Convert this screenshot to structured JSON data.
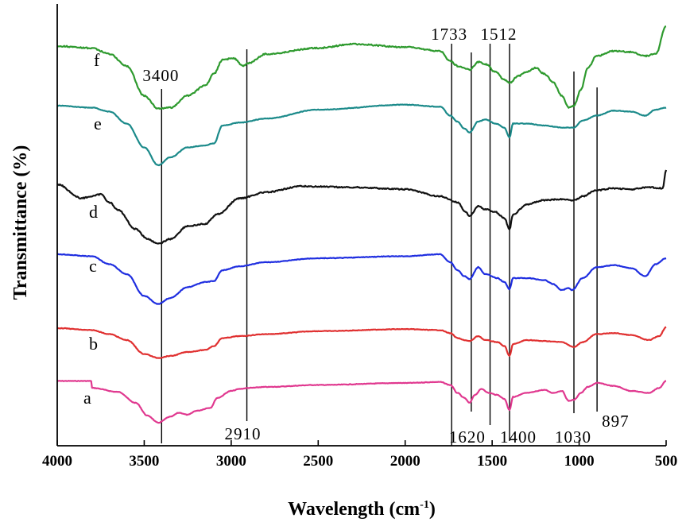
{
  "chart_data": {
    "type": "line",
    "title": "",
    "xlabel": "Wavelength (cm",
    "xlabel_sup": "-1",
    "xlabel_close": ")",
    "ylabel": "Transmittance (%)",
    "xlim": [
      4000,
      500
    ],
    "xticks": [
      {
        "value": 4000,
        "label": "4000"
      },
      {
        "value": 3500,
        "label": "3500"
      },
      {
        "value": 3000,
        "label": "3000"
      },
      {
        "value": 2500,
        "label": "2500"
      },
      {
        "value": 2000,
        "label": "2000"
      },
      {
        "value": 1500,
        "label": "1500"
      },
      {
        "value": 1000,
        "label": "1000"
      },
      {
        "value": 500,
        "label": "500"
      }
    ],
    "series": [
      {
        "name": "a",
        "label": "a",
        "color": "#e0388f",
        "offset": 0,
        "points": [
          [
            3800,
            5
          ],
          [
            3650,
            9
          ],
          [
            3550,
            20
          ],
          [
            3480,
            33
          ],
          [
            3420,
            40
          ],
          [
            3350,
            34
          ],
          [
            3300,
            30
          ],
          [
            3250,
            32
          ],
          [
            3200,
            28
          ],
          [
            3120,
            25
          ],
          [
            3080,
            15
          ],
          [
            3000,
            8
          ],
          [
            2950,
            6
          ],
          [
            2900,
            5
          ],
          [
            2800,
            4
          ],
          [
            2500,
            2
          ],
          [
            2000,
            0
          ],
          [
            1800,
            -1
          ],
          [
            1740,
            2
          ],
          [
            1700,
            10
          ],
          [
            1660,
            15
          ],
          [
            1630,
            20
          ],
          [
            1600,
            12
          ],
          [
            1560,
            6
          ],
          [
            1520,
            10
          ],
          [
            1470,
            12
          ],
          [
            1430,
            16
          ],
          [
            1400,
            27
          ],
          [
            1380,
            14
          ],
          [
            1300,
            10
          ],
          [
            1200,
            7
          ],
          [
            1150,
            10
          ],
          [
            1100,
            8
          ],
          [
            1060,
            18
          ],
          [
            1030,
            17
          ],
          [
            990,
            10
          ],
          [
            950,
            4
          ],
          [
            897,
            0
          ],
          [
            800,
            3
          ],
          [
            700,
            8
          ],
          [
            600,
            10
          ],
          [
            540,
            5
          ],
          [
            500,
            -2
          ]
        ]
      },
      {
        "name": "b",
        "label": "b",
        "color": "#e03030",
        "offset": 0,
        "points": [
          [
            4000,
            0
          ],
          [
            3800,
            2
          ],
          [
            3700,
            6
          ],
          [
            3600,
            12
          ],
          [
            3500,
            26
          ],
          [
            3420,
            30
          ],
          [
            3350,
            28
          ],
          [
            3250,
            24
          ],
          [
            3150,
            22
          ],
          [
            3100,
            18
          ],
          [
            3050,
            10
          ],
          [
            2950,
            8
          ],
          [
            2800,
            6
          ],
          [
            2500,
            3
          ],
          [
            2000,
            1
          ],
          [
            1800,
            2
          ],
          [
            1740,
            5
          ],
          [
            1700,
            10
          ],
          [
            1660,
            12
          ],
          [
            1630,
            13
          ],
          [
            1580,
            8
          ],
          [
            1540,
            12
          ],
          [
            1470,
            14
          ],
          [
            1430,
            18
          ],
          [
            1400,
            28
          ],
          [
            1380,
            16
          ],
          [
            1300,
            12
          ],
          [
            1200,
            13
          ],
          [
            1100,
            14
          ],
          [
            1030,
            19
          ],
          [
            980,
            14
          ],
          [
            900,
            6
          ],
          [
            800,
            5
          ],
          [
            700,
            7
          ],
          [
            600,
            12
          ],
          [
            540,
            8
          ],
          [
            500,
            -1
          ]
        ]
      },
      {
        "name": "c",
        "label": "c",
        "color": "#1f2ee0",
        "offset": 0,
        "points": [
          [
            4000,
            0
          ],
          [
            3800,
            2
          ],
          [
            3700,
            10
          ],
          [
            3600,
            20
          ],
          [
            3500,
            42
          ],
          [
            3420,
            50
          ],
          [
            3350,
            44
          ],
          [
            3250,
            33
          ],
          [
            3150,
            28
          ],
          [
            3100,
            27
          ],
          [
            3050,
            16
          ],
          [
            2950,
            12
          ],
          [
            2800,
            8
          ],
          [
            2500,
            4
          ],
          [
            2000,
            2
          ],
          [
            1800,
            0
          ],
          [
            1740,
            8
          ],
          [
            1700,
            16
          ],
          [
            1660,
            22
          ],
          [
            1630,
            25
          ],
          [
            1580,
            13
          ],
          [
            1540,
            20
          ],
          [
            1470,
            24
          ],
          [
            1430,
            28
          ],
          [
            1400,
            35
          ],
          [
            1380,
            24
          ],
          [
            1300,
            24
          ],
          [
            1200,
            26
          ],
          [
            1150,
            30
          ],
          [
            1100,
            36
          ],
          [
            1060,
            34
          ],
          [
            1040,
            36
          ],
          [
            980,
            24
          ],
          [
            900,
            13
          ],
          [
            800,
            11
          ],
          [
            700,
            14
          ],
          [
            620,
            22
          ],
          [
            560,
            10
          ],
          [
            500,
            4
          ]
        ]
      },
      {
        "name": "d",
        "label": "d",
        "color": "#111111",
        "offset": 0,
        "points": [
          [
            4000,
            0
          ],
          [
            3860,
            14
          ],
          [
            3800,
            12
          ],
          [
            3750,
            10
          ],
          [
            3700,
            18
          ],
          [
            3650,
            26
          ],
          [
            3550,
            45
          ],
          [
            3480,
            55
          ],
          [
            3420,
            60
          ],
          [
            3350,
            55
          ],
          [
            3250,
            42
          ],
          [
            3150,
            40
          ],
          [
            3080,
            30
          ],
          [
            2950,
            14
          ],
          [
            2800,
            8
          ],
          [
            2600,
            2
          ],
          [
            2300,
            3
          ],
          [
            2000,
            5
          ],
          [
            1800,
            12
          ],
          [
            1700,
            18
          ],
          [
            1650,
            28
          ],
          [
            1630,
            32
          ],
          [
            1580,
            22
          ],
          [
            1540,
            25
          ],
          [
            1480,
            28
          ],
          [
            1430,
            34
          ],
          [
            1400,
            45
          ],
          [
            1380,
            30
          ],
          [
            1300,
            20
          ],
          [
            1200,
            16
          ],
          [
            1100,
            15
          ],
          [
            1030,
            16
          ],
          [
            980,
            12
          ],
          [
            900,
            6
          ],
          [
            800,
            4
          ],
          [
            700,
            5
          ],
          [
            600,
            3
          ],
          [
            520,
            4
          ],
          [
            500,
            -14
          ]
        ]
      },
      {
        "name": "e",
        "label": "e",
        "color": "#1b8a8a",
        "offset": 0,
        "points": [
          [
            4000,
            0
          ],
          [
            3800,
            2
          ],
          [
            3700,
            6
          ],
          [
            3600,
            18
          ],
          [
            3500,
            42
          ],
          [
            3420,
            60
          ],
          [
            3350,
            52
          ],
          [
            3250,
            42
          ],
          [
            3150,
            40
          ],
          [
            3100,
            38
          ],
          [
            3050,
            20
          ],
          [
            2950,
            17
          ],
          [
            2800,
            13
          ],
          [
            2500,
            4
          ],
          [
            2000,
            -1
          ],
          [
            1800,
            1
          ],
          [
            1740,
            10
          ],
          [
            1700,
            16
          ],
          [
            1660,
            23
          ],
          [
            1630,
            27
          ],
          [
            1580,
            16
          ],
          [
            1540,
            14
          ],
          [
            1480,
            18
          ],
          [
            1430,
            22
          ],
          [
            1400,
            32
          ],
          [
            1380,
            18
          ],
          [
            1300,
            18
          ],
          [
            1200,
            20
          ],
          [
            1100,
            22
          ],
          [
            1030,
            22
          ],
          [
            980,
            15
          ],
          [
            900,
            10
          ],
          [
            800,
            5
          ],
          [
            700,
            6
          ],
          [
            620,
            10
          ],
          [
            560,
            4
          ],
          [
            500,
            2
          ]
        ]
      },
      {
        "name": "f",
        "label": "f",
        "color": "#2e9a2e",
        "offset": 0,
        "points": [
          [
            4000,
            0
          ],
          [
            3800,
            2
          ],
          [
            3700,
            8
          ],
          [
            3600,
            20
          ],
          [
            3500,
            50
          ],
          [
            3420,
            63
          ],
          [
            3350,
            62
          ],
          [
            3250,
            50
          ],
          [
            3150,
            40
          ],
          [
            3100,
            28
          ],
          [
            3050,
            14
          ],
          [
            2990,
            12
          ],
          [
            2930,
            20
          ],
          [
            2900,
            17
          ],
          [
            2800,
            8
          ],
          [
            2500,
            2
          ],
          [
            2300,
            -2
          ],
          [
            2000,
            1
          ],
          [
            1800,
            5
          ],
          [
            1740,
            15
          ],
          [
            1700,
            20
          ],
          [
            1660,
            22
          ],
          [
            1630,
            24
          ],
          [
            1580,
            16
          ],
          [
            1540,
            18
          ],
          [
            1480,
            26
          ],
          [
            1430,
            34
          ],
          [
            1400,
            37
          ],
          [
            1350,
            30
          ],
          [
            1300,
            26
          ],
          [
            1250,
            22
          ],
          [
            1200,
            28
          ],
          [
            1150,
            36
          ],
          [
            1100,
            50
          ],
          [
            1060,
            62
          ],
          [
            1030,
            60
          ],
          [
            990,
            44
          ],
          [
            950,
            22
          ],
          [
            900,
            10
          ],
          [
            800,
            5
          ],
          [
            700,
            6
          ],
          [
            620,
            10
          ],
          [
            560,
            8
          ],
          [
            500,
            -20
          ]
        ]
      }
    ],
    "reference_lines": [
      {
        "value": 3400,
        "label": "3400",
        "label_pos": "top"
      },
      {
        "value": 2910,
        "label": "2910",
        "label_pos": "bottom"
      },
      {
        "value": 1733,
        "label": "1733",
        "label_pos": "top"
      },
      {
        "value": 1620,
        "label": "1620",
        "label_pos": "bottom"
      },
      {
        "value": 1512,
        "label": "1512",
        "label_pos": "top"
      },
      {
        "value": 1400,
        "label": "1400",
        "label_pos": "bottom"
      },
      {
        "value": 1030,
        "label": "1030",
        "label_pos": "bottom"
      },
      {
        "value": 897,
        "label": "897",
        "label_pos": "bottom"
      }
    ]
  }
}
